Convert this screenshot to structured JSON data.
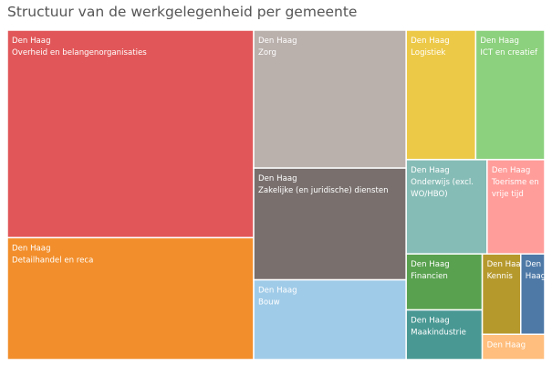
{
  "title": "Structuur van de werkgelegenheid per gemeente",
  "chart_data": {
    "type": "treemap",
    "title": "Structuur van de werkgelegenheid per gemeente",
    "tiles": [
      {
        "municipality": "Den Haag",
        "sector": "Overheid en belangenorganisaties",
        "lines": [
          "Den Haag",
          "Overheid en belangenorganisaties"
        ],
        "color": "#E15759",
        "value": 74.4
      },
      {
        "municipality": "Den Haag",
        "sector": "Detailhandel en reca",
        "lines": [
          "Den Haag",
          "Detailhandel en reca"
        ],
        "color": "#F28E2B",
        "value": 43.7
      },
      {
        "municipality": "Den Haag",
        "sector": "Zorg",
        "lines": [
          "Den Haag",
          "Zorg"
        ],
        "color": "#BAB0AC",
        "value": 30.6
      },
      {
        "municipality": "Den Haag",
        "sector": "Zakelijke (en juridische) diensten",
        "lines": [
          "Den Haag",
          "Zakelijke (en juridische) diensten"
        ],
        "color": "#79706E",
        "value": 24.8
      },
      {
        "municipality": "Den Haag",
        "sector": "Bouw",
        "lines": [
          "Den Haag",
          "Bouw"
        ],
        "color": "#A0CBE8",
        "value": 17.7
      },
      {
        "municipality": "Den Haag",
        "sector": "Logistiek",
        "lines": [
          "Den Haag",
          "Logistiek"
        ],
        "color": "#EDC948",
        "value": 13.1
      },
      {
        "municipality": "Den Haag",
        "sector": "ICT en creatief",
        "lines": [
          "Den Haag",
          "ICT en creatief"
        ],
        "color": "#8CD17D",
        "value": 13.0
      },
      {
        "municipality": "Den Haag",
        "sector": "Onderwijs (excl. WO/HBO)",
        "lines": [
          "Den Haag",
          "Onderwijs (excl.",
          "WO/HBO)"
        ],
        "color": "#86BCB6",
        "value": 11.1
      },
      {
        "municipality": "Den Haag",
        "sector": "Toerisme en vrije tijd",
        "lines": [
          "Den Haag",
          "Toerisme en",
          "vrije tijd"
        ],
        "color": "#FF9D9A",
        "value": 7.9
      },
      {
        "municipality": "Den Haag",
        "sector": "Financien",
        "lines": [
          "Den Haag",
          "Financien"
        ],
        "color": "#59A14F",
        "value": 6.2
      },
      {
        "municipality": "Den Haag",
        "sector": "Maakindustrie",
        "lines": [
          "Den Haag",
          "Maakindustrie"
        ],
        "color": "#499894",
        "value": 5.5
      },
      {
        "municipality": "Den Haag",
        "sector": "Kennis",
        "lines": [
          "Den Haag",
          "Kennis"
        ],
        "color": "#B6992D",
        "value": 4.5
      },
      {
        "municipality": "Den Haag",
        "sector": "",
        "lines": [
          "Den",
          "Haag"
        ],
        "color": "#4E79A7",
        "value": 2.8
      },
      {
        "municipality": "Den Haag",
        "sector": "",
        "lines": [
          "Den Haag"
        ],
        "color": "#FFBE7D",
        "value": 2.3
      }
    ]
  }
}
